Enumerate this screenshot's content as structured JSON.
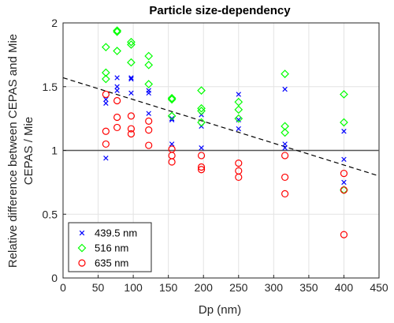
{
  "chart_data": {
    "type": "scatter",
    "title": "Particle size-dependency",
    "xlabel": "Dp (nm)",
    "ylabel_line1": "Relative difference between CEPAS and Mie",
    "ylabel_line2": "CEPAS / Mie",
    "xlim": [
      0,
      450
    ],
    "ylim": [
      0,
      2
    ],
    "xticks": [
      0,
      50,
      100,
      150,
      200,
      250,
      300,
      350,
      400,
      450
    ],
    "yticks": [
      0,
      0.5,
      1,
      1.5,
      2
    ],
    "ytick_labels": [
      "0",
      "0.5",
      "1",
      "1.5",
      "2"
    ],
    "grid": true,
    "legend_position": "bottom-left",
    "reference_line": {
      "y": 1,
      "color": "#555555"
    },
    "trend_line": {
      "x": [
        0,
        450
      ],
      "y": [
        1.57,
        0.8
      ],
      "style": "dashed",
      "color": "#000000"
    },
    "series": [
      {
        "name": "439.5 nm",
        "marker": "x",
        "color": "#0000ff",
        "points": [
          [
            61,
            0.94
          ],
          [
            61,
            1.37
          ],
          [
            61,
            1.4
          ],
          [
            77,
            1.47
          ],
          [
            77,
            1.5
          ],
          [
            77,
            1.57
          ],
          [
            97,
            1.45
          ],
          [
            97,
            1.56
          ],
          [
            97,
            1.57
          ],
          [
            122,
            1.29
          ],
          [
            122,
            1.45
          ],
          [
            122,
            1.47
          ],
          [
            155,
            1.05
          ],
          [
            155,
            1.24
          ],
          [
            155,
            1.25
          ],
          [
            197,
            1.02
          ],
          [
            197,
            1.19
          ],
          [
            197,
            1.28
          ],
          [
            250,
            1.17
          ],
          [
            250,
            1.24
          ],
          [
            250,
            1.44
          ],
          [
            316,
            1.02
          ],
          [
            316,
            1.05
          ],
          [
            316,
            1.48
          ],
          [
            400,
            0.75
          ],
          [
            400,
            0.93
          ],
          [
            400,
            1.15
          ]
        ]
      },
      {
        "name": "516 nm",
        "marker": "diamond",
        "color": "#00ff00",
        "points": [
          [
            61,
            1.56
          ],
          [
            61,
            1.61
          ],
          [
            61,
            1.81
          ],
          [
            77,
            1.78
          ],
          [
            77,
            1.93
          ],
          [
            77,
            1.94
          ],
          [
            97,
            1.69
          ],
          [
            97,
            1.83
          ],
          [
            97,
            1.85
          ],
          [
            122,
            1.52
          ],
          [
            122,
            1.67
          ],
          [
            122,
            1.74
          ],
          [
            155,
            1.27
          ],
          [
            155,
            1.4
          ],
          [
            155,
            1.41
          ],
          [
            197,
            1.22
          ],
          [
            197,
            1.31
          ],
          [
            197,
            1.33
          ],
          [
            197,
            1.47
          ],
          [
            250,
            1.25
          ],
          [
            250,
            1.32
          ],
          [
            250,
            1.38
          ],
          [
            316,
            1.14
          ],
          [
            316,
            1.19
          ],
          [
            316,
            1.6
          ],
          [
            400,
            0.69
          ],
          [
            400,
            1.22
          ],
          [
            400,
            1.44
          ]
        ]
      },
      {
        "name": "635 nm",
        "marker": "circle",
        "color": "#ff0000",
        "points": [
          [
            61,
            1.05
          ],
          [
            61,
            1.15
          ],
          [
            61,
            1.44
          ],
          [
            77,
            1.18
          ],
          [
            77,
            1.26
          ],
          [
            77,
            1.39
          ],
          [
            97,
            1.13
          ],
          [
            97,
            1.17
          ],
          [
            97,
            1.27
          ],
          [
            122,
            1.04
          ],
          [
            122,
            1.16
          ],
          [
            122,
            1.23
          ],
          [
            155,
            0.91
          ],
          [
            155,
            0.96
          ],
          [
            155,
            1.01
          ],
          [
            197,
            0.85
          ],
          [
            197,
            0.87
          ],
          [
            197,
            0.96
          ],
          [
            250,
            0.79
          ],
          [
            250,
            0.84
          ],
          [
            250,
            0.9
          ],
          [
            316,
            0.66
          ],
          [
            316,
            0.79
          ],
          [
            316,
            0.96
          ],
          [
            400,
            0.34
          ],
          [
            400,
            0.69
          ],
          [
            400,
            0.82
          ]
        ]
      }
    ]
  }
}
